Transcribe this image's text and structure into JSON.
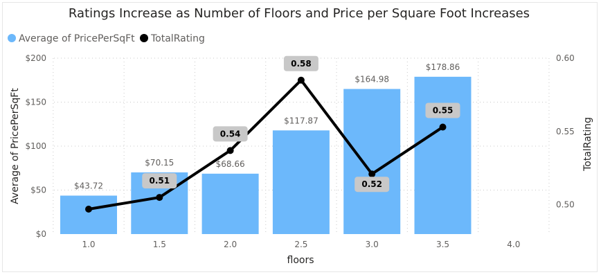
{
  "chart_data": {
    "type": "bar",
    "title": "Ratings Increase as Number of Floors and Price per Square Foot Increases",
    "xlabel": "floors",
    "ylabel": "Average of PricePerSqFt",
    "y2label": "TotalRating",
    "categories": [
      "1.0",
      "1.5",
      "2.0",
      "2.5",
      "3.0",
      "3.5",
      "4.0"
    ],
    "series": [
      {
        "name": "Average of PricePerSqFt",
        "type": "bar",
        "axis": "left",
        "color": "#6cb8fb",
        "values": [
          43.72,
          70.15,
          68.66,
          117.87,
          164.98,
          178.86,
          null
        ],
        "labels": [
          "$43.72",
          "$70.15",
          "$68.66",
          "$117.87",
          "$164.98",
          "$178.86",
          ""
        ]
      },
      {
        "name": "TotalRating",
        "type": "line",
        "axis": "right",
        "color": "#000000",
        "values": [
          0.497,
          0.505,
          0.537,
          0.585,
          0.521,
          0.553,
          null
        ],
        "labels": [
          "",
          "0.51",
          "0.54",
          "0.58",
          "0.52",
          "0.55",
          ""
        ]
      }
    ],
    "ylim": [
      0,
      200
    ],
    "yticks": [
      "$0",
      "$50",
      "$100",
      "$150",
      "$200"
    ],
    "y2lim": [
      0.48,
      0.6
    ],
    "y2ticks": [
      "0.50",
      "0.55",
      "0.60"
    ],
    "legend_position": "top-left",
    "grid": true
  }
}
